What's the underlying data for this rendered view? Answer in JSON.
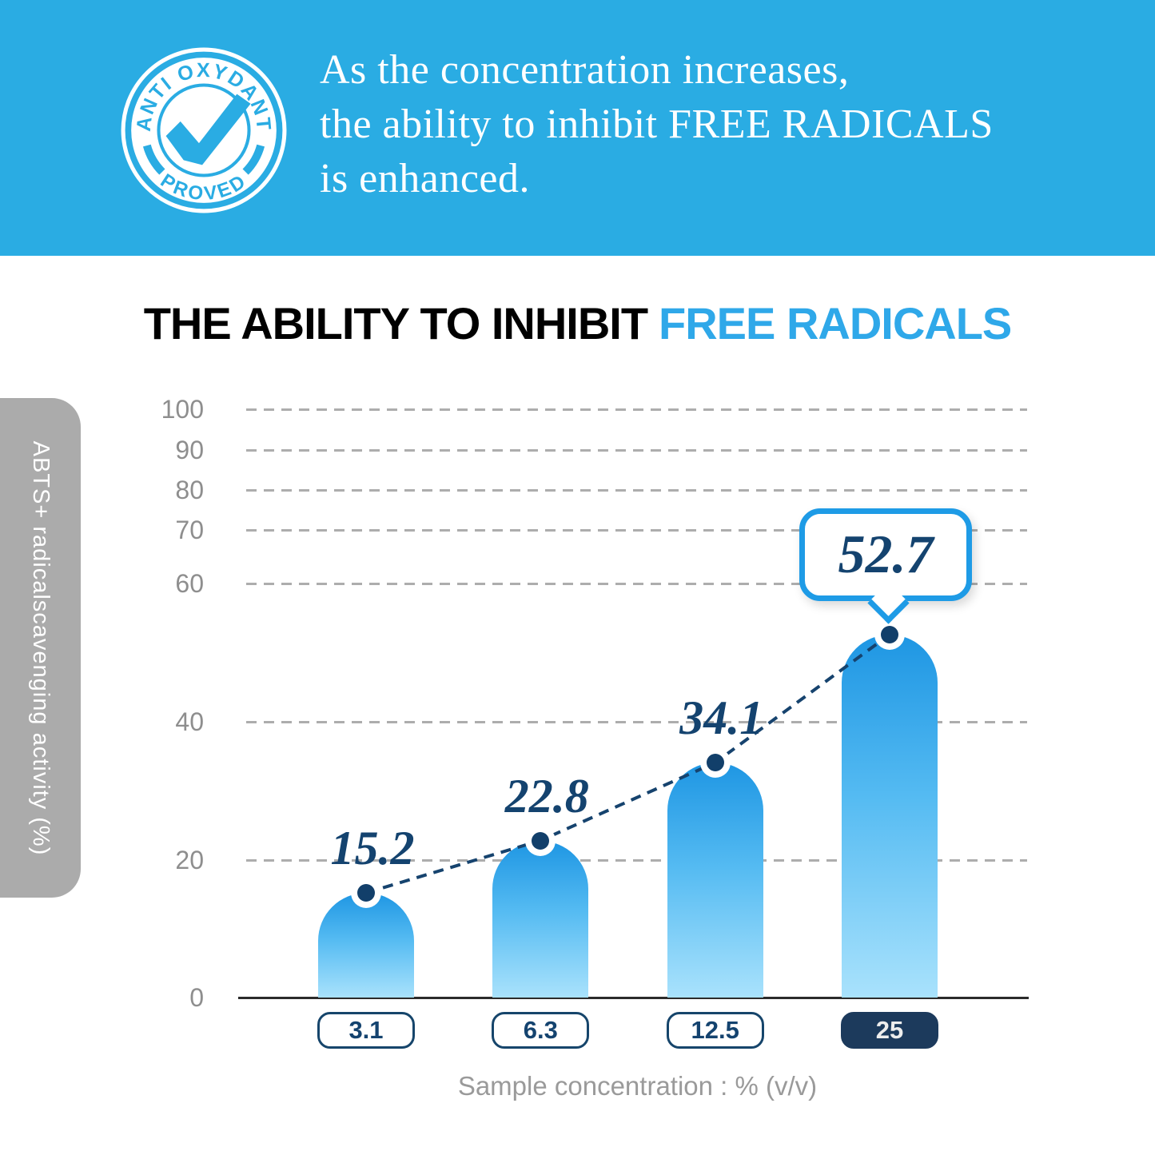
{
  "colors": {
    "header_bg": "#2AACE3",
    "title_accent": "#2FA8E9",
    "navy_text": "#14436F",
    "pill_border": "#16456B",
    "pill_fill": "#1C3A5C",
    "bar_top": "#1E96E3",
    "bar_bottom": "#A9E2FC",
    "callout_border": "#1E9BE6",
    "gridline": "#ADADAD",
    "sidebar_bg": "#ABABAB",
    "tick_text": "#8E8E8E",
    "axis_label_text": "#9A9A9A"
  },
  "header": {
    "badge": {
      "arc_top": "ANTI OXYDANT",
      "arc_bottom": "PROVED"
    },
    "line1": "As the concentration increases,",
    "line2": "the ability to inhibit FREE RADICALS",
    "line3": "is enhanced."
  },
  "title": {
    "black": "THE ABILITY TO INHIBIT",
    "blue": "FREE RADICALS"
  },
  "chart_data": {
    "type": "bar",
    "title": "THE ABILITY TO INHIBIT FREE RADICALS",
    "categories": [
      "3.1",
      "6.3",
      "12.5",
      "25"
    ],
    "values": [
      15.2,
      22.8,
      34.1,
      52.7
    ],
    "value_labels": [
      "15.2",
      "22.8",
      "34.1",
      "52.7"
    ],
    "callout_value": "52.7",
    "highlight_category": "25",
    "xlabel": "Sample concentration : % (v/v)",
    "ylabel": "ABTS+ radicalscavenging activity (%)",
    "yticks": [
      0,
      20,
      40,
      60,
      70,
      80,
      90,
      100
    ],
    "ylim": [
      0,
      100
    ],
    "grid": "horizontal-dashed",
    "legend_position": "none",
    "overlay": "dashed trend line with round markers connecting bar tops"
  }
}
